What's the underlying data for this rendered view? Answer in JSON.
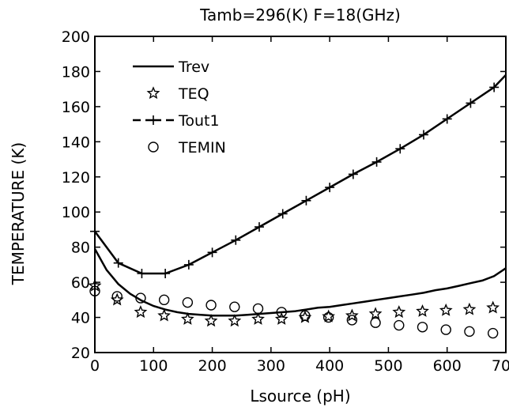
{
  "chart_data": {
    "type": "line",
    "title": "Tamb=296(K)  F=18(GHz)",
    "xlabel": "Lsource  (pH)",
    "ylabel": "TEMPERATURE  (K)",
    "xlim": [
      0,
      700
    ],
    "ylim": [
      20,
      200
    ],
    "xticks": [
      0,
      100,
      200,
      300,
      400,
      500,
      600,
      700
    ],
    "yticks": [
      20,
      40,
      60,
      80,
      100,
      120,
      140,
      160,
      180,
      200
    ],
    "grid": false,
    "legend_position": "top-left",
    "series": [
      {
        "name": "Trev",
        "style": "solid-line",
        "x": [
          0,
          20,
          40,
          60,
          80,
          100,
          120,
          140,
          160,
          180,
          200,
          220,
          240,
          260,
          280,
          300,
          320,
          340,
          360,
          380,
          400,
          420,
          440,
          460,
          480,
          500,
          520,
          540,
          560,
          580,
          600,
          620,
          640,
          660,
          680,
          700
        ],
        "y": [
          79,
          67,
          59,
          53.5,
          49.5,
          46.5,
          44.5,
          43,
          42,
          41.5,
          41,
          41,
          41,
          41.5,
          42,
          42.5,
          43,
          43.5,
          44.5,
          45.5,
          46,
          47,
          48,
          49,
          50,
          51,
          52,
          53,
          54,
          55.5,
          56.5,
          58,
          59.5,
          61,
          63.5,
          68
        ]
      },
      {
        "name": "TEQ",
        "style": "star-markers",
        "x": [
          0,
          38,
          78,
          118,
          158,
          198,
          238,
          278,
          318,
          358,
          398,
          438,
          478,
          518,
          558,
          598,
          638,
          678
        ],
        "y": [
          58,
          50,
          43,
          41,
          39,
          38,
          38,
          39,
          39,
          40,
          40.5,
          41,
          42,
          43,
          43.5,
          44,
          44.5,
          45.5
        ]
      },
      {
        "name": "Tout1",
        "style": "line-plus-markers",
        "x": [
          0,
          40,
          80,
          120,
          160,
          200,
          240,
          280,
          320,
          360,
          400,
          440,
          480,
          520,
          560,
          600,
          640,
          680,
          700
        ],
        "y": [
          89,
          71,
          65,
          65,
          70,
          77,
          84,
          91.5,
          99,
          106.5,
          114,
          121.5,
          128.5,
          136,
          144,
          153,
          162,
          171,
          178
        ]
      },
      {
        "name": "TEMIN",
        "style": "circle-markers",
        "x": [
          0,
          38,
          78,
          118,
          158,
          198,
          238,
          278,
          318,
          358,
          398,
          438,
          478,
          518,
          558,
          598,
          638,
          678
        ],
        "y": [
          55,
          52,
          51,
          50,
          48.5,
          47,
          46,
          45,
          43,
          41,
          40,
          38.5,
          37,
          35.5,
          34.5,
          33,
          32,
          31
        ]
      }
    ]
  }
}
